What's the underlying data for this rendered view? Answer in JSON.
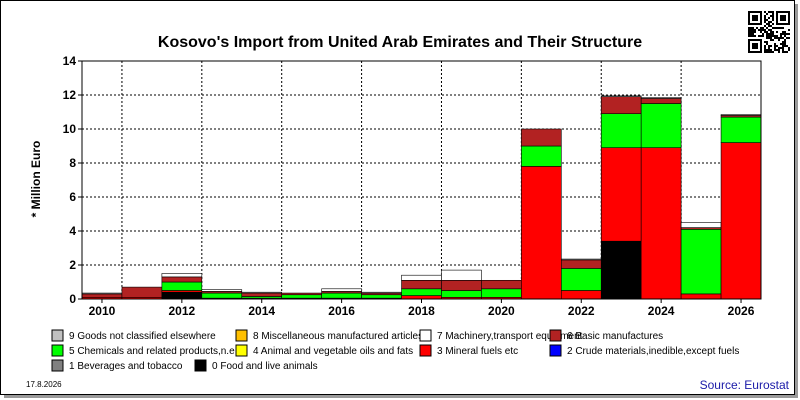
{
  "chart_data": {
    "type": "bar",
    "stacked": true,
    "title": "Kosovo's Import from United Arab Emirates and Their Structure",
    "ylabel": "* Million Euro",
    "ylim": [
      0,
      14
    ],
    "yticks": [
      0,
      2,
      4,
      6,
      8,
      10,
      12,
      14
    ],
    "categories": [
      "2010",
      "2011",
      "2012",
      "2013",
      "2014",
      "2015",
      "2016",
      "2017",
      "2018",
      "2019",
      "2020",
      "2021",
      "2022",
      "2023",
      "2024",
      "2025",
      "2026"
    ],
    "xtick_labels": [
      "2010",
      "2012",
      "2014",
      "2016",
      "2018",
      "2020",
      "2022",
      "2024",
      "2026"
    ],
    "grid": true,
    "series": [
      {
        "name": "0 Food and live animals",
        "color": "#000000",
        "values": [
          0,
          0,
          0.4,
          0,
          0,
          0,
          0,
          0,
          0,
          0,
          0,
          0,
          0,
          3.4,
          0,
          0,
          0
        ]
      },
      {
        "name": "1 Beverages and tobacco",
        "color": "#808080",
        "values": [
          0,
          0,
          0,
          0,
          0,
          0,
          0,
          0,
          0,
          0,
          0,
          0,
          0,
          0,
          0,
          0,
          0
        ]
      },
      {
        "name": "2 Crude materials,inedible,except fuels",
        "color": "#0000ff",
        "values": [
          0,
          0,
          0,
          0,
          0,
          0,
          0,
          0,
          0,
          0,
          0,
          0,
          0,
          0,
          0,
          0,
          0
        ]
      },
      {
        "name": "3 Mineral fuels etc",
        "color": "#ff0000",
        "values": [
          0.1,
          0.1,
          0.1,
          0.05,
          0.05,
          0.05,
          0.05,
          0.05,
          0.2,
          0.1,
          0.1,
          7.8,
          0.5,
          5.5,
          8.9,
          0.3,
          9.2
        ]
      },
      {
        "name": "4 Animal and vegetable oils and fats",
        "color": "#ffff00",
        "values": [
          0,
          0,
          0,
          0,
          0,
          0,
          0,
          0,
          0,
          0,
          0,
          0,
          0,
          0,
          0,
          0,
          0
        ]
      },
      {
        "name": "5 Chemicals and related products,n.e.s.",
        "color": "#00ff00",
        "values": [
          0,
          0,
          0.5,
          0.3,
          0.1,
          0.2,
          0.3,
          0.2,
          0.4,
          0.4,
          0.5,
          1.2,
          1.3,
          2.0,
          2.6,
          3.8,
          1.5
        ]
      },
      {
        "name": "6 Basic manufactures",
        "color": "#b22222",
        "values": [
          0.2,
          0.6,
          0.3,
          0.1,
          0.2,
          0.1,
          0.1,
          0.1,
          0.5,
          0.6,
          0.5,
          1.0,
          0.5,
          1.0,
          0.3,
          0.1,
          0.1
        ]
      },
      {
        "name": "7 Machinery,transport equipment",
        "color": "#ffffff",
        "values": [
          0.05,
          0,
          0.2,
          0.1,
          0.05,
          0,
          0.15,
          0.05,
          0.3,
          0.6,
          0,
          0,
          0.05,
          0.05,
          0.05,
          0.3,
          0.05
        ]
      },
      {
        "name": "8 Miscellaneous manufactured articles",
        "color": "#ffc000",
        "values": [
          0,
          0,
          0,
          0,
          0,
          0,
          0,
          0,
          0,
          0,
          0,
          0,
          0,
          0,
          0,
          0,
          0
        ]
      },
      {
        "name": "9 Goods not classified elsewhere",
        "color": "#c0c0c0",
        "values": [
          0,
          0,
          0,
          0,
          0,
          0,
          0,
          0,
          0,
          0,
          0,
          0,
          0,
          0,
          0,
          0,
          0
        ]
      }
    ],
    "legend_order": [
      "9 Goods not classified elsewhere",
      "8 Miscellaneous manufactured articles",
      "7 Machinery,transport equipment",
      "6 Basic manufactures",
      "5 Chemicals and related products,n.e.s.",
      "4 Animal and vegetable oils and fats",
      "3 Mineral fuels etc",
      "2 Crude materials,inedible,except fuels",
      "1 Beverages and tobacco",
      "0 Food and live animals"
    ],
    "legend_position": "bottom"
  },
  "footer": {
    "date": "17.8.2026",
    "source": "Source: Eurostat"
  },
  "icons": {
    "qr": "qr-code-icon"
  }
}
